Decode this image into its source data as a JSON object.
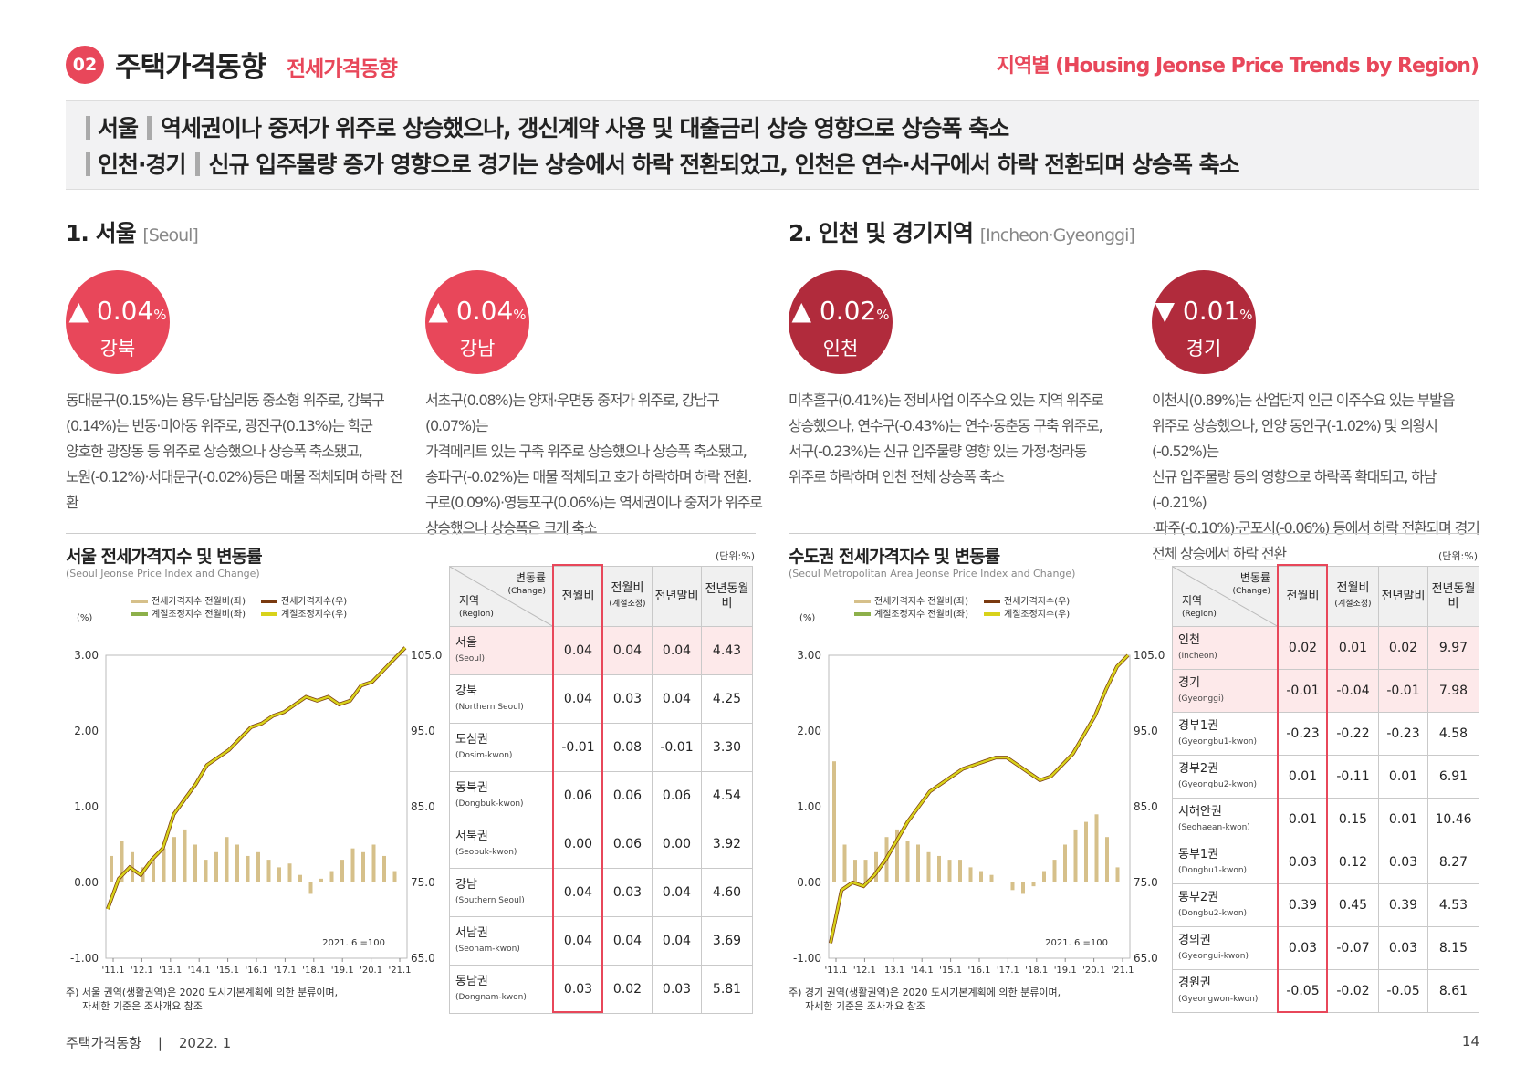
{
  "header": {
    "badge": "02",
    "title": "주택가격동향",
    "subtitle": "전세가격동향",
    "right": "지역별 (Housing Jeonse Price Trends by Region)"
  },
  "summary": {
    "line1_tag": "서울",
    "line1_text": "역세권이나 중저가 위주로 상승했으나, 갱신계약 사용 및 대출금리 상승 영향으로 상승폭 축소",
    "line2_tag": "인천·경기",
    "line2_text": "신규 입주물량 증가 영향으로 경기는 상승에서 하락 전환되었고, 인천은 연수·서구에서 하락 전환되며 상승폭 축소"
  },
  "sections": {
    "seoul": {
      "title": "1. 서울",
      "en": "[Seoul]"
    },
    "incheon": {
      "title": "2. 인천 및 경기지역",
      "en": "[Incheon·Gyeonggi]"
    }
  },
  "circles": [
    {
      "arrow": "▲",
      "value": "0.04",
      "unit": "%",
      "region": "강북"
    },
    {
      "arrow": "▲",
      "value": "0.04",
      "unit": "%",
      "region": "강남"
    },
    {
      "arrow": "▲",
      "value": "0.02",
      "unit": "%",
      "region": "인천"
    },
    {
      "arrow": "▼",
      "value": "0.01",
      "unit": "%",
      "region": "경기"
    }
  ],
  "descriptions": {
    "gangbuk": [
      "동대문구(0.15%)는 용두·답십리동 중소형 위주로, 강북구",
      "(0.14%)는 번동·미아동 위주로, 광진구(0.13%)는 학군",
      "양호한 광장동 등 위주로 상승했으나 상승폭 축소됐고,",
      "노원(-0.12%)·서대문구(-0.02%)등은 매물 적체되며 하락 전환"
    ],
    "gangnam": [
      "서초구(0.08%)는 양재·우면동 중저가 위주로, 강남구(0.07%)는",
      "가격메리트 있는 구축 위주로 상승했으나 상승폭 축소됐고,",
      "송파구(-0.02%)는 매물 적체되고 호가 하락하며 하락 전환.",
      "구로(0.09%)·영등포구(0.06%)는 역세권이나 중저가 위주로",
      "상승했으나 상승폭은 크게 축소"
    ],
    "incheon": [
      "미추홀구(0.41%)는 정비사업 이주수요 있는 지역 위주로",
      "상승했으나, 연수구(-0.43%)는 연수·동춘동 구축 위주로,",
      "서구(-0.23%)는 신규 입주물량 영향 있는 가정·청라동",
      "위주로 하락하며 인천 전체 상승폭 축소"
    ],
    "gyeonggi": [
      "이천시(0.89%)는 산업단지 인근 이주수요 있는 부발읍",
      "위주로 상승했으나, 안양 동안구(-1.02%) 및 의왕시(-0.52%)는",
      "신규 입주물량 등의 영향으로 하락폭 확대되고, 하남(-0.21%)",
      "·파주(-0.10%)·군포시(-0.06%) 등에서 하락 전환되며 경기",
      "전체 상승에서 하락 전환"
    ]
  },
  "seoul_block": {
    "title": "서울 전세가격지수 및 변동률",
    "subtitle": "(Seoul Jeonse Price Index and Change)",
    "unit": "(단위:%)",
    "note1": "주) 서울 권역(생활권역)은 2020 도시기본계획에 의한 분류이며,",
    "note2": "자세한 기준은 조사개요 참조"
  },
  "metro_block": {
    "title": "수도권 전세가격지수 및 변동률",
    "subtitle": "(Seoul Metropolitan Area Jeonse Price Index and Change)",
    "unit": "(단위:%)",
    "note1": "주) 경기 권역(생활권역)은 2020 도시기본계획에 의한 분류이며,",
    "note2": "자세한 기준은 조사개요 참조"
  },
  "table_headers": {
    "corner_top": "변동률",
    "corner_top_en": "(Change)",
    "corner_bottom": "지역",
    "corner_bottom_en": "(Region)",
    "col1": "전월비",
    "col2": "전월비",
    "col2_sub": "(계절조정)",
    "col3": "전년말비",
    "col4": "전년동월비"
  },
  "seoul_table": [
    {
      "name": "서울",
      "en": "(Seoul)",
      "v1": "0.04",
      "v2": "0.04",
      "v3": "0.04",
      "v4": "4.43",
      "hl": true
    },
    {
      "name": "강북",
      "en": "(Northern Seoul)",
      "v1": "0.04",
      "v2": "0.03",
      "v3": "0.04",
      "v4": "4.25"
    },
    {
      "name": "도심권",
      "en": "(Dosim-kwon)",
      "v1": "-0.01",
      "v2": "0.08",
      "v3": "-0.01",
      "v4": "3.30"
    },
    {
      "name": "동북권",
      "en": "(Dongbuk-kwon)",
      "v1": "0.06",
      "v2": "0.06",
      "v3": "0.06",
      "v4": "4.54"
    },
    {
      "name": "서북권",
      "en": "(Seobuk-kwon)",
      "v1": "0.00",
      "v2": "0.06",
      "v3": "0.00",
      "v4": "3.92"
    },
    {
      "name": "강남",
      "en": "(Southern Seoul)",
      "v1": "0.04",
      "v2": "0.03",
      "v3": "0.04",
      "v4": "4.60"
    },
    {
      "name": "서남권",
      "en": "(Seonam-kwon)",
      "v1": "0.04",
      "v2": "0.04",
      "v3": "0.04",
      "v4": "3.69"
    },
    {
      "name": "동남권",
      "en": "(Dongnam-kwon)",
      "v1": "0.03",
      "v2": "0.02",
      "v3": "0.03",
      "v4": "5.81"
    }
  ],
  "metro_table": [
    {
      "name": "인천",
      "en": "(Incheon)",
      "v1": "0.02",
      "v2": "0.01",
      "v3": "0.02",
      "v4": "9.97",
      "hl": true
    },
    {
      "name": "경기",
      "en": "(Gyeonggi)",
      "v1": "-0.01",
      "v2": "-0.04",
      "v3": "-0.01",
      "v4": "7.98",
      "hl": true
    },
    {
      "name": "경부1권",
      "en": "(Gyeongbu1-kwon)",
      "v1": "-0.23",
      "v2": "-0.22",
      "v3": "-0.23",
      "v4": "4.58"
    },
    {
      "name": "경부2권",
      "en": "(Gyeongbu2-kwon)",
      "v1": "0.01",
      "v2": "-0.11",
      "v3": "0.01",
      "v4": "6.91"
    },
    {
      "name": "서해안권",
      "en": "(Seohaean-kwon)",
      "v1": "0.01",
      "v2": "0.15",
      "v3": "0.01",
      "v4": "10.46"
    },
    {
      "name": "동부1권",
      "en": "(Dongbu1-kwon)",
      "v1": "0.03",
      "v2": "0.12",
      "v3": "0.03",
      "v4": "8.27"
    },
    {
      "name": "동부2권",
      "en": "(Dongbu2-kwon)",
      "v1": "0.39",
      "v2": "0.45",
      "v3": "0.39",
      "v4": "4.53"
    },
    {
      "name": "경의권",
      "en": "(Gyeongui-kwon)",
      "v1": "0.03",
      "v2": "-0.07",
      "v3": "0.03",
      "v4": "8.15"
    },
    {
      "name": "경원권",
      "en": "(Gyeongwon-kwon)",
      "v1": "-0.05",
      "v2": "-0.02",
      "v3": "-0.05",
      "v4": "8.61"
    }
  ],
  "chart_data": [
    {
      "type": "bar",
      "legend": [
        "전세가격지수 전월비(좌)",
        "전세가격지수(우)",
        "계절조정지수 전월비(좌)",
        "계절조정지수(우)"
      ],
      "ylabel": "(%)",
      "ylim": [
        -1.0,
        3.0
      ],
      "y2lim": [
        65.0,
        105.0
      ],
      "yticks": [
        "3.00",
        "2.00",
        "1.00",
        "0.00",
        "-1.00"
      ],
      "y2ticks": [
        "105.0",
        "95.0",
        "85.0",
        "75.0",
        "65.0"
      ],
      "x": [
        "'11.1",
        "'12.1",
        "'13.1",
        "'14.1",
        "'15.1",
        "'16.1",
        "'17.1",
        "'18.1",
        "'19.1",
        "'20.1",
        "'21.1"
      ],
      "annotation": "2021. 6 =100",
      "index_line": [
        71.5,
        75.5,
        77,
        76,
        78,
        79.5,
        84,
        86,
        88,
        90.5,
        91.5,
        92.5,
        94,
        95.5,
        96,
        97,
        97.5,
        98.5,
        99.5,
        99,
        99.5,
        98.5,
        99,
        101,
        101.5,
        103,
        104.5,
        106
      ],
      "change_bars": [
        0.35,
        0.55,
        0.4,
        0.2,
        0.3,
        0.45,
        0.6,
        0.7,
        0.5,
        0.3,
        0.4,
        0.6,
        0.5,
        0.35,
        0.4,
        0.3,
        0.2,
        0.25,
        0.1,
        -0.15,
        0.05,
        0.15,
        0.3,
        0.45,
        0.4,
        0.5,
        0.35,
        0.15
      ]
    },
    {
      "type": "bar",
      "legend": [
        "전세가격지수 전월비(좌)",
        "전세가격지수(우)",
        "계절조정지수 전월비(좌)",
        "계절조정지수(우)"
      ],
      "ylabel": "(%)",
      "ylim": [
        -1.0,
        3.0
      ],
      "y2lim": [
        65.0,
        105.0
      ],
      "yticks": [
        "3.00",
        "2.00",
        "1.00",
        "0.00",
        "-1.00"
      ],
      "y2ticks": [
        "105.0",
        "95.0",
        "85.0",
        "75.0",
        "65.0"
      ],
      "x": [
        "'11.1",
        "'12.1",
        "'13.1",
        "'14.1",
        "'15.1",
        "'16.1",
        "'17.1",
        "'18.1",
        "'19.1",
        "'20.1",
        "'21.1"
      ],
      "annotation": "2021. 6 =100",
      "index_line": [
        67,
        74,
        75,
        74.5,
        76,
        78,
        80.5,
        83,
        85,
        87,
        88,
        89,
        90,
        90.5,
        91,
        91.5,
        91.5,
        90.5,
        89.5,
        88.5,
        89,
        90.5,
        92,
        94.5,
        97,
        100.5,
        103.5,
        105
      ],
      "change_bars": [
        1.6,
        0.5,
        0.3,
        0.3,
        0.4,
        0.6,
        0.7,
        0.55,
        0.5,
        0.4,
        0.35,
        0.3,
        0.3,
        0.2,
        0.15,
        0.1,
        0.0,
        -0.1,
        -0.15,
        -0.05,
        0.15,
        0.3,
        0.5,
        0.7,
        0.8,
        0.9,
        0.6,
        0.2
      ]
    }
  ],
  "footer": {
    "left": "주택가격동향",
    "sep": "|",
    "date": "2022. 1",
    "page": "14"
  },
  "colors": {
    "accent": "#e8475a",
    "dark_accent": "#b12b3c",
    "bar": "#d6c08a",
    "bar_sa": "#8db04a",
    "index_line": "#7a3a10",
    "sa_line": "#d8d21a"
  }
}
